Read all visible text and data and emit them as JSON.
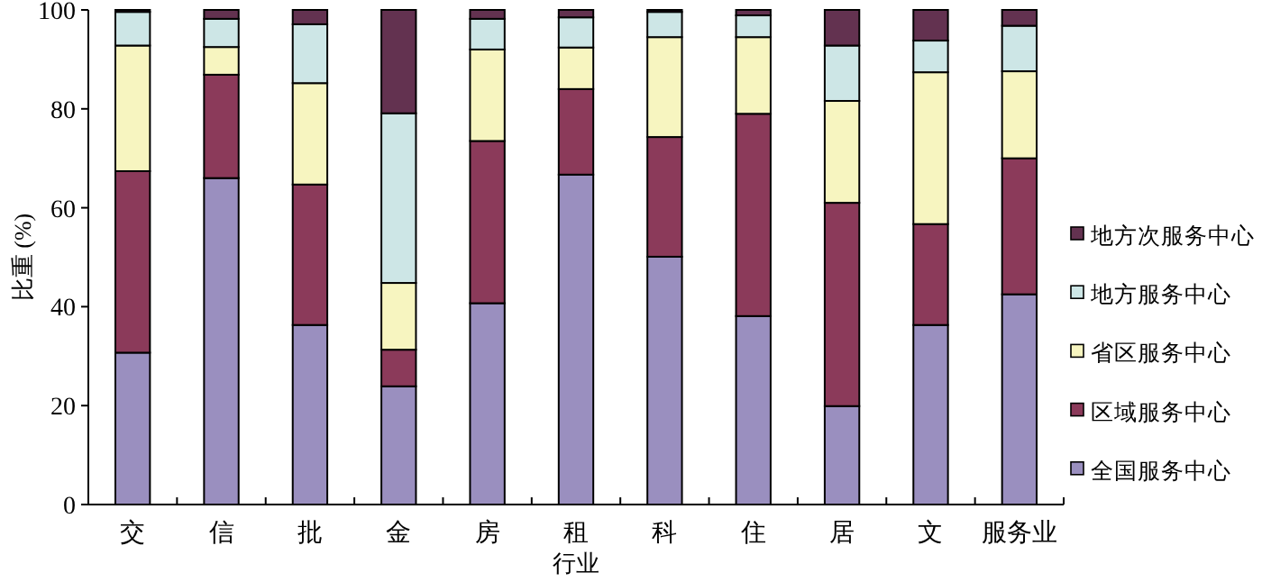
{
  "chart_data": {
    "type": "bar",
    "stacked": true,
    "xlabel": "行业",
    "ylabel": "比重 (%)",
    "categories": [
      "交",
      "信",
      "批",
      "金",
      "房",
      "租",
      "科",
      "住",
      "居",
      "文",
      "服务业"
    ],
    "ylim": [
      0,
      100
    ],
    "yticks": [
      0,
      20,
      40,
      60,
      80,
      100
    ],
    "grid": false,
    "legend": "right",
    "series": [
      {
        "name": "全国服务中心",
        "color": "#9a8fbf",
        "values": [
          30.7,
          66.0,
          36.3,
          23.9,
          40.7,
          66.7,
          50.1,
          38.1,
          19.9,
          36.3,
          42.5
        ]
      },
      {
        "name": "区域服务中心",
        "color": "#8b3a5a",
        "values": [
          36.7,
          20.9,
          28.4,
          7.4,
          32.8,
          17.3,
          24.2,
          40.9,
          41.1,
          20.4,
          27.5
        ]
      },
      {
        "name": "省区服务中心",
        "color": "#f7f5c0",
        "values": [
          25.4,
          5.6,
          20.5,
          13.5,
          18.5,
          8.4,
          20.2,
          15.5,
          20.6,
          30.7,
          17.6
        ]
      },
      {
        "name": "地方服务中心",
        "color": "#cde6e6",
        "values": [
          6.8,
          5.7,
          11.9,
          34.3,
          6.2,
          6.1,
          5.1,
          4.4,
          11.2,
          6.4,
          9.2
        ]
      },
      {
        "name": "地方次服务中心",
        "color": "#633250",
        "values": [
          0.4,
          1.8,
          2.9,
          20.9,
          1.8,
          1.5,
          0.4,
          1.1,
          7.2,
          6.2,
          3.2
        ]
      }
    ]
  }
}
